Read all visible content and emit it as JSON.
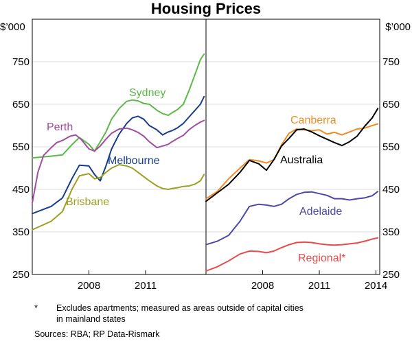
{
  "chart_data": {
    "type": "line",
    "title": "Housing Prices",
    "unit_label_left": "$’000",
    "unit_label_right": "$’000",
    "y_ticks": [
      250,
      350,
      450,
      550,
      650,
      750
    ],
    "y_tick_labels": [
      "250",
      "350",
      "450",
      "550",
      "650",
      "750"
    ],
    "ylim": [
      250,
      850
    ],
    "panels": [
      {
        "name": "capital-cities",
        "xlim": [
          2005.0,
          2014.2
        ],
        "x_ticks": [
          2008,
          2011
        ],
        "x_tick_labels": [
          "2008",
          "2011"
        ],
        "series": [
          {
            "name": "Sydney",
            "color": "#5cb848",
            "x": [
              2005.0,
              2006.0,
              2006.6,
              2007.1,
              2007.5,
              2008.0,
              2008.3,
              2008.6,
              2008.9,
              2009.2,
              2009.6,
              2010.0,
              2010.3,
              2010.6,
              2010.9,
              2011.2,
              2011.6,
              2011.9,
              2012.2,
              2012.4,
              2012.7,
              2013.0,
              2013.3,
              2013.6,
              2013.9,
              2014.1
            ],
            "y": [
              524,
              528,
              531,
              555,
              572,
              556,
              540,
              562,
              585,
              615,
              640,
              657,
              660,
              658,
              652,
              650,
              636,
              628,
              624,
              630,
              638,
              650,
              682,
              718,
              755,
              768
            ]
          },
          {
            "name": "Melbourne",
            "color": "#173c8c",
            "x": [
              2005.0,
              2006.0,
              2006.6,
              2007.1,
              2007.5,
              2008.0,
              2008.3,
              2008.6,
              2008.9,
              2009.2,
              2009.6,
              2010.0,
              2010.3,
              2010.6,
              2010.9,
              2011.2,
              2011.6,
              2011.9,
              2012.2,
              2012.4,
              2012.7,
              2013.0,
              2013.3,
              2013.6,
              2013.9,
              2014.1
            ],
            "y": [
              393,
              410,
              430,
              475,
              507,
              505,
              485,
              470,
              505,
              545,
              580,
              605,
              618,
              622,
              615,
              600,
              590,
              578,
              585,
              588,
              595,
              605,
              620,
              635,
              650,
              668
            ]
          },
          {
            "name": "Perth",
            "color": "#a04ca0",
            "x": [
              2005.0,
              2005.3,
              2005.6,
              2006.0,
              2006.3,
              2006.6,
              2007.0,
              2007.3,
              2007.6,
              2008.0,
              2008.3,
              2008.6,
              2008.9,
              2009.2,
              2009.6,
              2010.0,
              2010.3,
              2010.6,
              2010.9,
              2011.2,
              2011.6,
              2011.9,
              2012.2,
              2012.4,
              2012.7,
              2013.0,
              2013.3,
              2013.6,
              2013.9,
              2014.1
            ],
            "y": [
              418,
              490,
              530,
              548,
              560,
              565,
              575,
              578,
              567,
              545,
              540,
              552,
              568,
              582,
              592,
              594,
              590,
              584,
              575,
              562,
              548,
              552,
              556,
              562,
              570,
              577,
              590,
              600,
              608,
              612
            ]
          },
          {
            "name": "Brisbane",
            "color": "#9aa020",
            "x": [
              2005.0,
              2006.0,
              2006.6,
              2007.1,
              2007.5,
              2008.0,
              2008.3,
              2008.6,
              2008.9,
              2009.2,
              2009.6,
              2010.0,
              2010.3,
              2010.6,
              2010.9,
              2011.2,
              2011.6,
              2011.9,
              2012.2,
              2012.4,
              2012.7,
              2013.0,
              2013.3,
              2013.6,
              2013.9,
              2014.1
            ],
            "y": [
              355,
              375,
              398,
              450,
              482,
              487,
              475,
              478,
              490,
              500,
              508,
              505,
              500,
              490,
              480,
              470,
              458,
              452,
              450,
              452,
              454,
              457,
              458,
              462,
              470,
              485
            ]
          }
        ]
      },
      {
        "name": "other-regions",
        "xlim": [
          2005.0,
          2014.2
        ],
        "x_ticks": [
          2008,
          2011,
          2014
        ],
        "x_tick_labels": [
          "2008",
          "2011",
          "2014"
        ],
        "series": [
          {
            "name": "Canberra",
            "color": "#f08a24",
            "x": [
              2005.0,
              2005.6,
              2006.2,
              2006.8,
              2007.3,
              2007.8,
              2008.2,
              2008.6,
              2009.0,
              2009.4,
              2009.8,
              2010.2,
              2010.6,
              2011.0,
              2011.4,
              2011.8,
              2012.2,
              2012.6,
              2013.0,
              2013.4,
              2013.8,
              2014.1
            ],
            "y": [
              428,
              445,
              475,
              500,
              520,
              517,
              512,
              520,
              555,
              582,
              592,
              590,
              588,
              590,
              580,
              584,
              578,
              585,
              592,
              594,
              600,
              604
            ]
          },
          {
            "name": "Australia",
            "color": "#000000",
            "x": [
              2005.0,
              2005.6,
              2006.2,
              2006.8,
              2007.3,
              2007.8,
              2008.2,
              2008.6,
              2009.0,
              2009.4,
              2009.8,
              2010.2,
              2010.6,
              2011.0,
              2011.4,
              2011.8,
              2012.2,
              2012.6,
              2013.0,
              2013.4,
              2013.8,
              2014.1
            ],
            "y": [
              422,
              442,
              462,
              490,
              518,
              510,
              495,
              520,
              552,
              570,
              590,
              592,
              585,
              576,
              568,
              560,
              553,
              562,
              575,
              598,
              618,
              640
            ]
          },
          {
            "name": "Adelaide",
            "color": "#4a49a6",
            "x": [
              2005.0,
              2005.6,
              2006.2,
              2006.8,
              2007.3,
              2007.8,
              2008.2,
              2008.6,
              2009.0,
              2009.4,
              2009.8,
              2010.2,
              2010.6,
              2011.0,
              2011.4,
              2011.8,
              2012.2,
              2012.6,
              2013.0,
              2013.4,
              2013.8,
              2014.1
            ],
            "y": [
              320,
              328,
              342,
              375,
              410,
              415,
              413,
              410,
              415,
              428,
              438,
              443,
              444,
              440,
              436,
              428,
              428,
              425,
              428,
              430,
              435,
              445
            ]
          },
          {
            "name": "Regional*",
            "color": "#e84a4a",
            "x": [
              2005.0,
              2005.6,
              2006.2,
              2006.8,
              2007.3,
              2007.8,
              2008.2,
              2008.6,
              2009.0,
              2009.4,
              2009.8,
              2010.2,
              2010.6,
              2011.0,
              2011.4,
              2011.8,
              2012.2,
              2012.6,
              2013.0,
              2013.4,
              2013.8,
              2014.1
            ],
            "y": [
              258,
              268,
              282,
              298,
              305,
              304,
              301,
              305,
              313,
              320,
              325,
              326,
              325,
              322,
              320,
              319,
              320,
              322,
              324,
              328,
              333,
              336
            ]
          }
        ]
      }
    ]
  },
  "footnote": {
    "marker": "*",
    "line1": "Excludes apartments; measured as areas outside of capital cities",
    "line2": "in mainland states"
  },
  "sources": "Sources:  RBA; RP Data-Rismark"
}
